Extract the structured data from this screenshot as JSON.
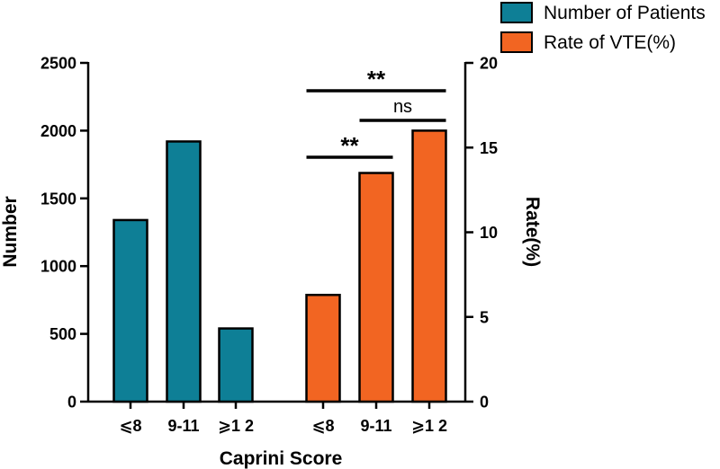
{
  "chart_data": {
    "type": "bar",
    "x_label": "Caprini Score",
    "y_left_label": "Number",
    "y_right_label": "Rate(%)",
    "y_left_range": [
      0,
      2500
    ],
    "y_left_ticks": [
      0,
      500,
      1000,
      1500,
      2000,
      2500
    ],
    "y_right_range": [
      0,
      20
    ],
    "y_right_ticks": [
      0,
      5,
      10,
      15,
      20
    ],
    "categories": [
      "⩽8",
      "9-11",
      "⩾1 2"
    ],
    "series": [
      {
        "name": "Number of Patients",
        "axis": "left",
        "color": "#0e7f96",
        "values": [
          1340,
          1920,
          540
        ]
      },
      {
        "name": "Rate of VTE(%)",
        "axis": "right",
        "color": "#f26522",
        "values": [
          6.3,
          13.5,
          16.0
        ]
      }
    ],
    "significance": [
      {
        "label": "**",
        "from": 0,
        "to": 2,
        "series": 1
      },
      {
        "label": "ns",
        "from": 1,
        "to": 2,
        "series": 1
      },
      {
        "label": "**",
        "from": 0,
        "to": 1,
        "series": 1
      }
    ]
  }
}
